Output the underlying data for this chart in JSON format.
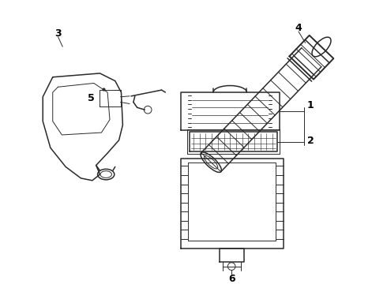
{
  "bg_color": "#ffffff",
  "line_color": "#2a2a2a",
  "label_color": "#000000",
  "lw_main": 1.1,
  "lw_thin": 0.7,
  "lw_thick": 1.4,
  "figsize": [
    4.9,
    3.6
  ],
  "dpi": 100
}
